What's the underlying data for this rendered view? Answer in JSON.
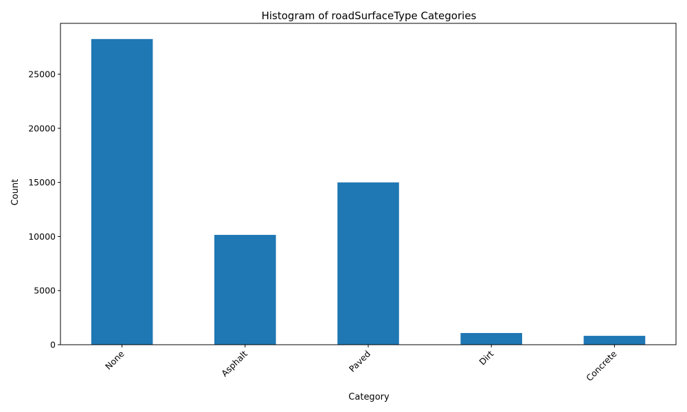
{
  "chart_data": {
    "type": "bar",
    "title": "Histogram of roadSurfaceType Categories",
    "xlabel": "Category",
    "ylabel": "Count",
    "categories": [
      "None",
      "Asphalt",
      "Paved",
      "Dirt",
      "Concrete"
    ],
    "values": [
      28250,
      10150,
      15000,
      1080,
      820
    ],
    "ylim": [
      0,
      29700
    ],
    "yticks": [
      0,
      5000,
      10000,
      15000,
      20000,
      25000
    ],
    "ytick_labels": [
      "0",
      "5000",
      "10000",
      "15000",
      "20000",
      "25000"
    ],
    "grid": false,
    "legend": "none",
    "bar_color": "#1f77b4"
  }
}
